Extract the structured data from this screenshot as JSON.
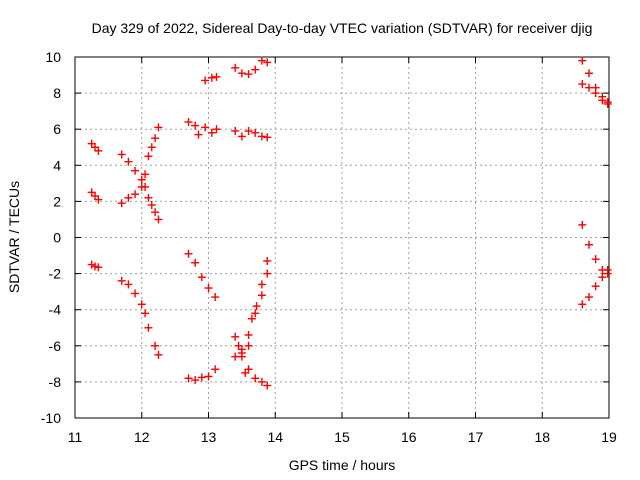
{
  "chart_data": {
    "type": "scatter",
    "title": "Day 329 of 2022, Sidereal Day-to-day VTEC variation (SDTVAR) for receiver djig",
    "xlabel": "GPS time / hours",
    "ylabel": "SDTVAR / TECUs",
    "xlim": [
      11,
      19
    ],
    "ylim": [
      -10,
      10
    ],
    "xticks": [
      "11",
      "12",
      "13",
      "14",
      "15",
      "16",
      "17",
      "18",
      "19"
    ],
    "yticks": [
      "10",
      "8",
      "6",
      "4",
      "2",
      "0",
      "-2",
      "-4",
      "-6",
      "-8",
      "-10"
    ],
    "grid": true,
    "marker": "+",
    "color": "#ff0000",
    "series": [
      {
        "points": [
          [
            11.25,
            5.2
          ],
          [
            11.3,
            5.0
          ],
          [
            11.35,
            4.8
          ],
          [
            11.25,
            2.5
          ],
          [
            11.3,
            2.3
          ],
          [
            11.35,
            2.1
          ],
          [
            11.25,
            -1.5
          ],
          [
            11.3,
            -1.6
          ],
          [
            11.35,
            -1.65
          ],
          [
            11.7,
            4.6
          ],
          [
            11.8,
            4.2
          ],
          [
            11.9,
            3.7
          ],
          [
            12.0,
            3.2
          ],
          [
            12.05,
            2.8
          ],
          [
            12.1,
            2.2
          ],
          [
            12.15,
            1.8
          ],
          [
            12.2,
            1.4
          ],
          [
            12.25,
            1.0
          ],
          [
            11.7,
            1.9
          ],
          [
            11.8,
            2.2
          ],
          [
            11.9,
            2.4
          ],
          [
            12.0,
            2.8
          ],
          [
            12.05,
            3.5
          ],
          [
            12.1,
            4.5
          ],
          [
            12.15,
            5.0
          ],
          [
            12.2,
            5.5
          ],
          [
            12.25,
            6.1
          ],
          [
            11.7,
            -2.4
          ],
          [
            11.8,
            -2.6
          ],
          [
            11.9,
            -3.1
          ],
          [
            12.0,
            -3.7
          ],
          [
            12.05,
            -4.2
          ],
          [
            12.1,
            -5.0
          ],
          [
            12.2,
            -6.0
          ],
          [
            12.25,
            -6.5
          ],
          [
            12.7,
            6.4
          ],
          [
            12.8,
            6.2
          ],
          [
            12.85,
            5.7
          ],
          [
            12.95,
            6.1
          ],
          [
            13.05,
            5.8
          ],
          [
            13.12,
            6.0
          ],
          [
            12.95,
            8.7
          ],
          [
            13.05,
            8.85
          ],
          [
            13.12,
            8.9
          ],
          [
            12.7,
            -0.9
          ],
          [
            12.8,
            -1.4
          ],
          [
            12.9,
            -2.2
          ],
          [
            13.0,
            -2.8
          ],
          [
            13.1,
            -3.3
          ],
          [
            12.7,
            -7.8
          ],
          [
            12.8,
            -7.9
          ],
          [
            12.9,
            -7.75
          ],
          [
            13.0,
            -7.7
          ],
          [
            13.1,
            -7.3
          ],
          [
            13.4,
            9.4
          ],
          [
            13.5,
            9.1
          ],
          [
            13.6,
            9.05
          ],
          [
            13.7,
            9.3
          ],
          [
            13.8,
            9.8
          ],
          [
            13.88,
            9.7
          ],
          [
            13.4,
            5.9
          ],
          [
            13.5,
            5.6
          ],
          [
            13.6,
            5.9
          ],
          [
            13.7,
            5.8
          ],
          [
            13.8,
            5.6
          ],
          [
            13.88,
            5.55
          ],
          [
            13.4,
            -5.5
          ],
          [
            13.45,
            -6.0
          ],
          [
            13.5,
            -6.4
          ],
          [
            13.6,
            -7.3
          ],
          [
            13.7,
            -7.8
          ],
          [
            13.8,
            -8.0
          ],
          [
            13.88,
            -8.2
          ],
          [
            13.4,
            -6.6
          ],
          [
            13.5,
            -6.2
          ],
          [
            13.55,
            -7.5
          ],
          [
            13.6,
            -6.0
          ],
          [
            13.65,
            -4.5
          ],
          [
            13.72,
            -3.8
          ],
          [
            13.8,
            -2.6
          ],
          [
            13.88,
            -1.3
          ],
          [
            13.5,
            -6.6
          ],
          [
            13.6,
            -5.4
          ],
          [
            13.7,
            -4.2
          ],
          [
            13.8,
            -3.2
          ],
          [
            13.88,
            -2.0
          ],
          [
            18.6,
            9.8
          ],
          [
            18.7,
            9.1
          ],
          [
            18.8,
            8.3
          ],
          [
            18.9,
            7.8
          ],
          [
            18.98,
            7.4
          ],
          [
            18.6,
            8.5
          ],
          [
            18.7,
            8.3
          ],
          [
            18.8,
            8.0
          ],
          [
            18.9,
            7.6
          ],
          [
            18.98,
            7.5
          ],
          [
            18.6,
            0.7
          ],
          [
            18.7,
            -0.4
          ],
          [
            18.8,
            -1.2
          ],
          [
            18.9,
            -1.8
          ],
          [
            18.98,
            -2.0
          ],
          [
            18.6,
            -3.7
          ],
          [
            18.7,
            -3.3
          ],
          [
            18.8,
            -2.7
          ],
          [
            18.9,
            -2.2
          ],
          [
            18.98,
            -1.8
          ]
        ]
      }
    ]
  }
}
